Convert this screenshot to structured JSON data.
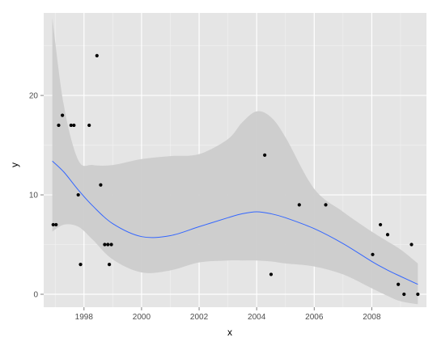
{
  "chart_data": {
    "type": "scatter",
    "xlabel": "x",
    "ylabel": "y",
    "xlim": [
      1996.6,
      2009.9
    ],
    "ylim": [
      -1.3,
      28.3
    ],
    "x_ticks": [
      1998,
      2000,
      2002,
      2004,
      2006,
      2008
    ],
    "x_tick_labels": [
      "1998",
      "2000",
      "2002",
      "2004",
      "2006",
      "2008"
    ],
    "y_ticks": [
      0,
      10,
      20
    ],
    "y_tick_labels": [
      "0",
      "10",
      "20"
    ],
    "grid": true,
    "background": "#e5e5e5",
    "points": [
      {
        "x": 1996.93,
        "y": 7
      },
      {
        "x": 1997.03,
        "y": 7
      },
      {
        "x": 1997.12,
        "y": 17
      },
      {
        "x": 1997.25,
        "y": 18
      },
      {
        "x": 1997.55,
        "y": 17
      },
      {
        "x": 1997.65,
        "y": 17
      },
      {
        "x": 1997.8,
        "y": 10
      },
      {
        "x": 1997.88,
        "y": 3
      },
      {
        "x": 1998.18,
        "y": 17
      },
      {
        "x": 1998.45,
        "y": 24
      },
      {
        "x": 1998.58,
        "y": 11
      },
      {
        "x": 1998.72,
        "y": 5
      },
      {
        "x": 1998.83,
        "y": 5
      },
      {
        "x": 1998.88,
        "y": 3
      },
      {
        "x": 1998.95,
        "y": 5
      },
      {
        "x": 2004.28,
        "y": 14
      },
      {
        "x": 2004.5,
        "y": 2
      },
      {
        "x": 2005.48,
        "y": 9
      },
      {
        "x": 2006.4,
        "y": 9
      },
      {
        "x": 2008.03,
        "y": 4
      },
      {
        "x": 2008.3,
        "y": 7
      },
      {
        "x": 2008.55,
        "y": 6
      },
      {
        "x": 2008.92,
        "y": 1
      },
      {
        "x": 2009.12,
        "y": 0
      },
      {
        "x": 2009.38,
        "y": 5
      },
      {
        "x": 2009.6,
        "y": 0
      }
    ],
    "smooth": {
      "x": [
        1996.9,
        1997.3,
        1997.8,
        1998.3,
        1999.0,
        2000.0,
        2001.0,
        2002.0,
        2003.0,
        2003.5,
        2004.0,
        2004.5,
        2005.0,
        2006.0,
        2007.0,
        2008.0,
        2008.5,
        2009.0,
        2009.6
      ],
      "y": [
        13.4,
        12.3,
        10.5,
        8.9,
        7.1,
        5.8,
        5.9,
        6.8,
        7.7,
        8.1,
        8.3,
        8.1,
        7.7,
        6.6,
        5.1,
        3.3,
        2.5,
        1.8,
        1.0
      ],
      "ymin": [
        6.3,
        7.0,
        6.8,
        5.5,
        3.5,
        2.2,
        2.4,
        3.2,
        3.4,
        3.4,
        3.4,
        3.3,
        3.1,
        2.8,
        2.0,
        0.6,
        -0.1,
        -0.7,
        -1.0
      ],
      "ymax": [
        27.8,
        19.0,
        13.5,
        13.0,
        13.0,
        13.6,
        13.9,
        14.1,
        15.6,
        17.3,
        18.4,
        17.8,
        15.8,
        10.6,
        8.3,
        6.3,
        5.4,
        4.5,
        3.1
      ],
      "line_color": "#3366ff",
      "band_color": "#cccccc"
    }
  }
}
